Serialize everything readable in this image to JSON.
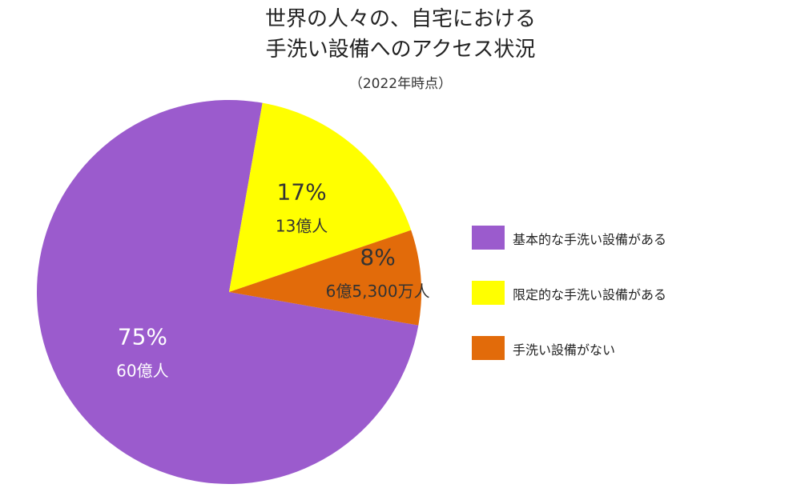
{
  "chart_data": {
    "type": "pie",
    "title_lines": [
      "世界の人々の、自宅における",
      "手洗い設備へのアクセス状況"
    ],
    "subtitle": "（2022年時点）",
    "slices": [
      {
        "label": "基本的な手洗い設備がある",
        "value": 75,
        "percent_label": "75%",
        "count_label": "60億人",
        "color": "#9b5bcd",
        "text_color": "#ffffff"
      },
      {
        "label": "限定的な手洗い設備がある",
        "value": 17,
        "percent_label": "17%",
        "count_label": "13億人",
        "color": "#ffff00",
        "text_color": "#333333"
      },
      {
        "label": "手洗い設備がない",
        "value": 8,
        "percent_label": "8%",
        "count_label": "6億5,300万人",
        "color": "#e26b0a",
        "text_color": "#333333"
      }
    ],
    "legend_position": "right"
  }
}
